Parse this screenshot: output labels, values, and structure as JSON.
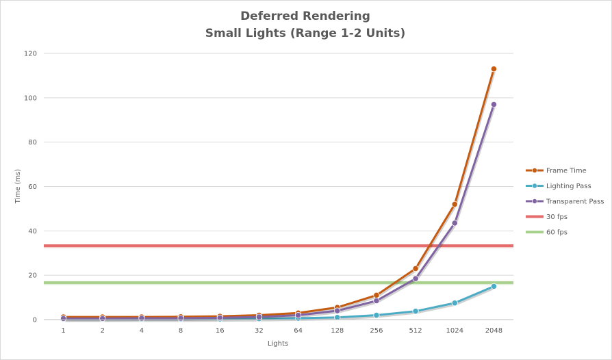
{
  "chart_data": {
    "type": "line",
    "title": [
      "Deferred Rendering",
      "Small Lights (Range 1-2 Units)"
    ],
    "xlabel": "Lights",
    "ylabel": "Time (ms)",
    "categories": [
      "1",
      "2",
      "4",
      "8",
      "16",
      "32",
      "64",
      "128",
      "256",
      "512",
      "1024",
      "2048"
    ],
    "ylim": [
      0,
      120
    ],
    "yticks": [
      "0",
      "20",
      "40",
      "60",
      "80",
      "100",
      "120"
    ],
    "grid": "horizontal",
    "legend_position": "right",
    "series": [
      {
        "name": "Frame Time",
        "color": "#c55a11",
        "values": [
          1.2,
          1.2,
          1.2,
          1.3,
          1.5,
          2.0,
          3.0,
          5.5,
          11.0,
          23.0,
          52.0,
          113.0
        ]
      },
      {
        "name": "Lighting Pass",
        "color": "#4bacc6",
        "values": [
          0.2,
          0.2,
          0.2,
          0.2,
          0.3,
          0.4,
          0.6,
          1.0,
          2.0,
          3.8,
          7.5,
          15.0
        ]
      },
      {
        "name": "Transparent Pass",
        "color": "#8064a2",
        "values": [
          0.5,
          0.5,
          0.6,
          0.6,
          0.8,
          1.2,
          2.0,
          4.0,
          8.5,
          18.5,
          43.5,
          97.0
        ]
      }
    ],
    "reference_lines": [
      {
        "name": "30 fps",
        "color": "#e46c6c",
        "value": 33.3
      },
      {
        "name": "60 fps",
        "color": "#a9d18e",
        "value": 16.7
      }
    ]
  }
}
